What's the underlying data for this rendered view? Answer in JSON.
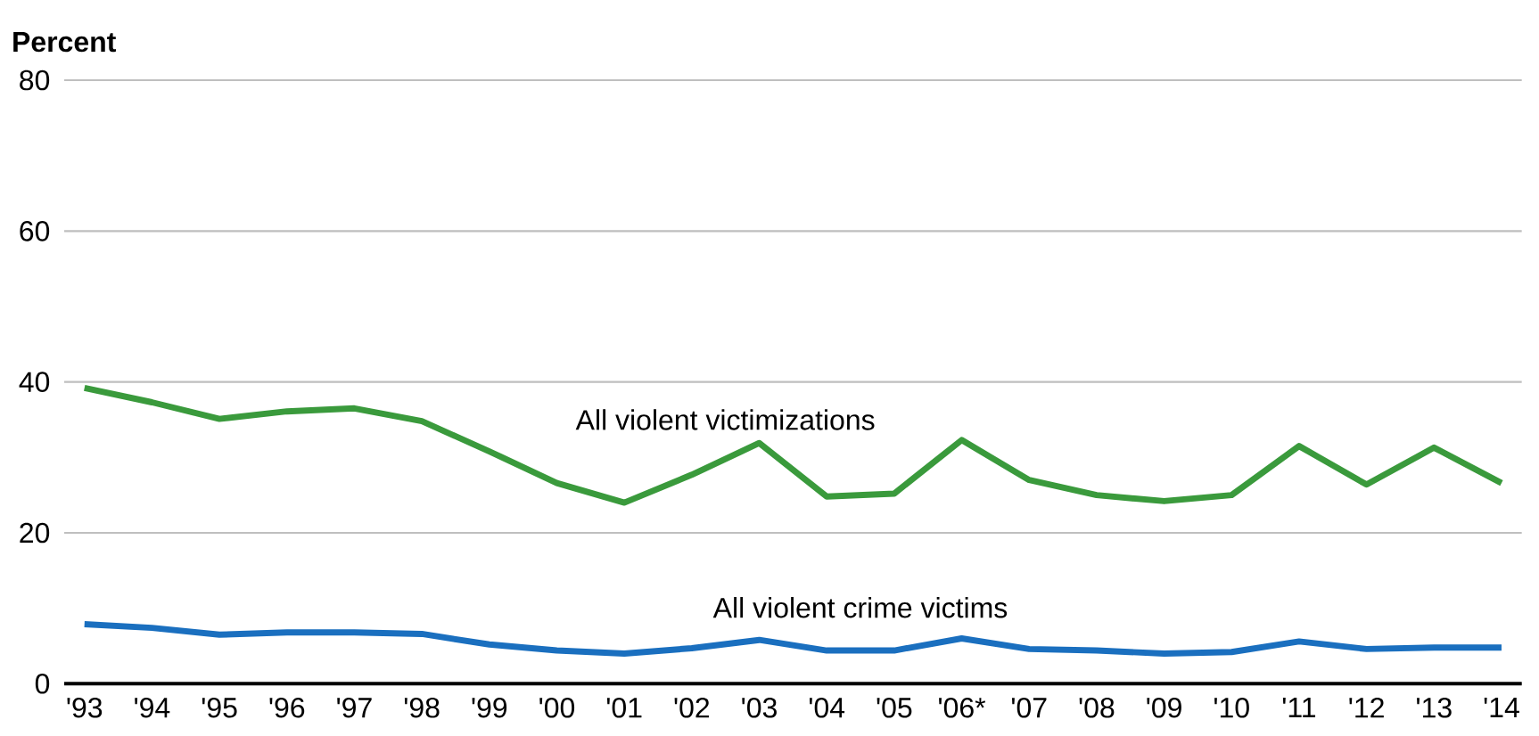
{
  "chart_data": {
    "type": "line",
    "ylabel": "Percent",
    "categories": [
      "'93",
      "'94",
      "'95",
      "'96",
      "'97",
      "'98",
      "'99",
      "'00",
      "'01",
      "'02",
      "'03",
      "'04",
      "'05",
      "'06*",
      "'07",
      "'08",
      "'09",
      "'10",
      "'11",
      "'12",
      "'13",
      "'14"
    ],
    "series": [
      {
        "name": "All violent victimizations",
        "color": "#3a9a3c",
        "values": [
          39.2,
          37.3,
          35.1,
          36.1,
          36.5,
          34.8,
          30.8,
          26.6,
          24.0,
          27.7,
          31.9,
          24.8,
          25.2,
          32.3,
          27.0,
          25.0,
          24.2,
          25.0,
          31.5,
          26.4,
          31.3,
          26.6
        ]
      },
      {
        "name": "All violent crime victims",
        "color": "#1a6fbf",
        "values": [
          7.9,
          7.4,
          6.5,
          6.8,
          6.8,
          6.6,
          5.2,
          4.4,
          4.0,
          4.7,
          5.8,
          4.4,
          4.4,
          6.0,
          4.6,
          4.4,
          4.0,
          4.2,
          5.6,
          4.6,
          4.8,
          4.8
        ]
      }
    ],
    "ylim": [
      0,
      80
    ],
    "yticks": [
      0,
      20,
      40,
      60,
      80
    ],
    "grid": "y",
    "line_style": "solid",
    "marker": "none"
  }
}
